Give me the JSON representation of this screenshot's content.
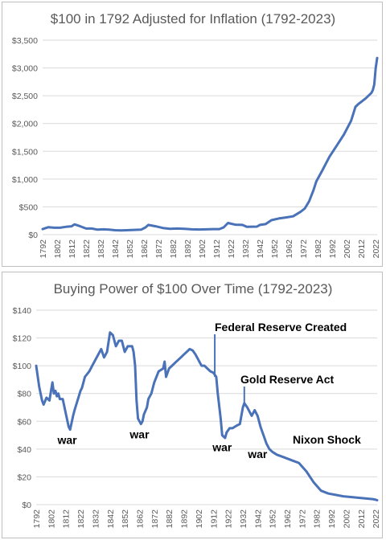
{
  "chart_data": [
    {
      "type": "line",
      "title": "$100 in 1792 Adjusted for Inflation (1792-2023)",
      "xlabel": "",
      "ylabel": "",
      "ylim": [
        0,
        3500
      ],
      "y_ticks": [
        0,
        500,
        1000,
        1500,
        2000,
        2500,
        3000,
        3500
      ],
      "y_tick_labels": [
        "$0",
        "$500",
        "$1,000",
        "$1,500",
        "$2,000",
        "$2,500",
        "$3,000",
        "$3,500"
      ],
      "xlim": [
        1792,
        2023
      ],
      "x_ticks": [
        1792,
        1802,
        1812,
        1822,
        1832,
        1842,
        1852,
        1862,
        1872,
        1882,
        1892,
        1902,
        1912,
        1922,
        1932,
        1942,
        1952,
        1962,
        1972,
        1982,
        1992,
        2002,
        2012,
        2022
      ],
      "grid": true,
      "color": "#4a72b8",
      "series": [
        {
          "x": [
            1792,
            1796,
            1800,
            1804,
            1808,
            1812,
            1814,
            1818,
            1822,
            1826,
            1830,
            1834,
            1838,
            1842,
            1846,
            1850,
            1855,
            1860,
            1863,
            1865,
            1870,
            1875,
            1880,
            1885,
            1890,
            1895,
            1900,
            1905,
            1910,
            1914,
            1917,
            1920,
            1925,
            1930,
            1933,
            1940,
            1942,
            1946,
            1950,
            1955,
            1960,
            1965,
            1970,
            1973,
            1976,
            1979,
            1981,
            1985,
            1990,
            1995,
            2000,
            2005,
            2008,
            2010,
            2015,
            2019,
            2020,
            2021,
            2022,
            2023
          ],
          "values": [
            100,
            135,
            125,
            125,
            140,
            150,
            185,
            150,
            110,
            110,
            90,
            95,
            90,
            80,
            75,
            80,
            85,
            90,
            130,
            175,
            150,
            120,
            105,
            110,
            105,
            95,
            92,
            95,
            100,
            100,
            130,
            210,
            180,
            175,
            140,
            145,
            175,
            190,
            260,
            290,
            310,
            330,
            410,
            470,
            600,
            800,
            960,
            1150,
            1400,
            1600,
            1800,
            2050,
            2300,
            2350,
            2450,
            2550,
            2600,
            2700,
            3000,
            3180
          ]
        }
      ]
    },
    {
      "type": "line",
      "title": "Buying Power of $100 Over Time (1792-2023)",
      "xlabel": "",
      "ylabel": "",
      "ylim": [
        0,
        140
      ],
      "y_ticks": [
        0,
        20,
        40,
        60,
        80,
        100,
        120,
        140
      ],
      "y_tick_labels": [
        "$0",
        "$20",
        "$40",
        "$60",
        "$80",
        "$100",
        "$120",
        "$140"
      ],
      "xlim": [
        1792,
        2023
      ],
      "x_ticks": [
        1792,
        1802,
        1812,
        1822,
        1832,
        1842,
        1852,
        1862,
        1872,
        1882,
        1892,
        1902,
        1912,
        1922,
        1932,
        1942,
        1952,
        1962,
        1972,
        1982,
        1992,
        2002,
        2012,
        2022
      ],
      "grid": true,
      "color": "#4a72b8",
      "series": [
        {
          "x": [
            1792,
            1794,
            1796,
            1797,
            1799,
            1800,
            1801,
            1803,
            1804,
            1805,
            1806,
            1807,
            1808,
            1810,
            1812,
            1814,
            1815,
            1817,
            1818,
            1820,
            1822,
            1823,
            1825,
            1828,
            1830,
            1832,
            1834,
            1836,
            1838,
            1840,
            1842,
            1844,
            1846,
            1847,
            1848,
            1850,
            1852,
            1854,
            1855,
            1857,
            1858,
            1859,
            1860,
            1861,
            1863,
            1864,
            1865,
            1867,
            1868,
            1870,
            1872,
            1875,
            1878,
            1879,
            1880,
            1882,
            1884,
            1886,
            1888,
            1890,
            1892,
            1894,
            1896,
            1898,
            1900,
            1902,
            1904,
            1906,
            1908,
            1910,
            1912,
            1914,
            1915,
            1917,
            1918,
            1920,
            1921,
            1923,
            1925,
            1928,
            1930,
            1932,
            1933,
            1935,
            1938,
            1940,
            1942,
            1944,
            1946,
            1948,
            1950,
            1952,
            1955,
            1960,
            1965,
            1970,
            1975,
            1980,
            1985,
            1990,
            1995,
            2000,
            2005,
            2010,
            2015,
            2020,
            2022,
            2023
          ],
          "values": [
            100,
            85,
            75,
            72,
            77,
            76,
            75,
            88,
            80,
            82,
            78,
            80,
            76,
            76,
            66,
            56,
            54,
            64,
            68,
            75,
            82,
            84,
            92,
            96,
            100,
            104,
            108,
            112,
            106,
            110,
            124,
            122,
            114,
            116,
            118,
            118,
            110,
            114,
            114,
            114,
            110,
            100,
            75,
            62,
            58,
            60,
            65,
            70,
            76,
            80,
            88,
            96,
            98,
            103,
            92,
            98,
            100,
            102,
            104,
            106,
            108,
            110,
            112,
            111,
            108,
            104,
            100,
            100,
            98,
            96,
            95,
            92,
            80,
            62,
            50,
            48,
            52,
            55,
            55,
            57,
            58,
            70,
            73,
            70,
            64,
            68,
            64,
            56,
            50,
            44,
            40,
            38,
            36,
            34,
            32,
            30,
            24,
            16,
            10,
            8,
            7,
            6,
            5.5,
            5,
            4.5,
            4,
            3.5,
            3.2
          ]
        }
      ],
      "annotations": [
        {
          "text": "war",
          "x": 1813,
          "y": 54
        },
        {
          "text": "war",
          "x": 1862,
          "y": 58
        },
        {
          "text": "war",
          "x": 1918,
          "y": 49
        },
        {
          "text": "war",
          "x": 1942,
          "y": 44
        },
        {
          "text": "Federal Reserve Created",
          "x": 1913,
          "y": 92
        },
        {
          "text": "Gold Reserve Act",
          "x": 1933,
          "y": 73
        },
        {
          "text": "Nixon Shock",
          "x": 1971,
          "y": 28
        }
      ]
    }
  ]
}
